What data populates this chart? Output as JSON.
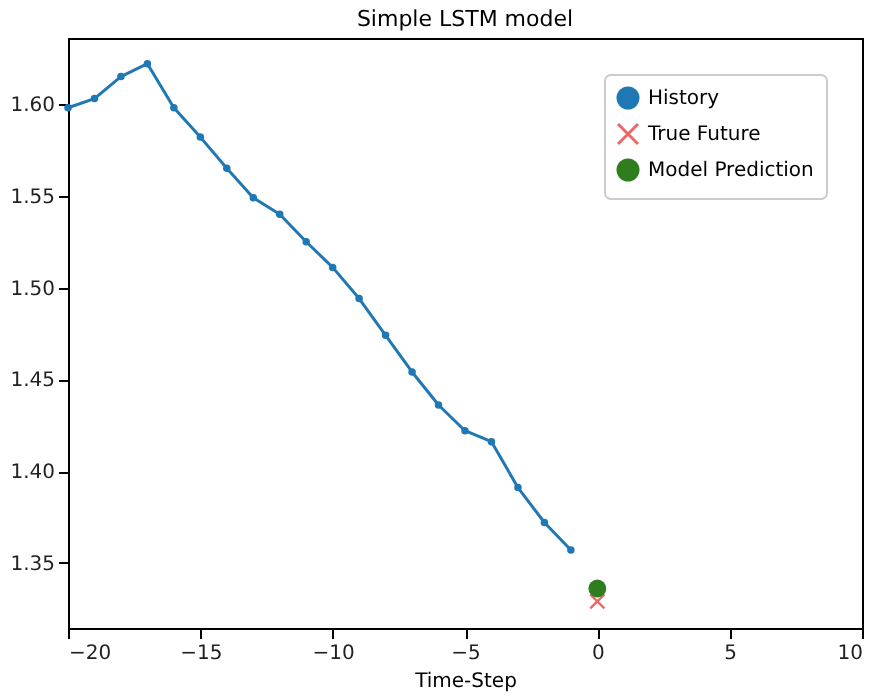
{
  "chart_data": {
    "type": "line",
    "title": "Simple LSTM model",
    "xlabel": "Time-Step",
    "xlim": [
      -20,
      10
    ],
    "xticks": [
      {
        "value": -20,
        "label": "−20"
      },
      {
        "value": -15,
        "label": "−15"
      },
      {
        "value": -10,
        "label": "−10"
      },
      {
        "value": -5,
        "label": "−5"
      },
      0,
      5,
      10
    ],
    "ylim": [
      1.3145,
      1.636
    ],
    "yticks": [
      1.35,
      {
        "value": 1.4,
        "label": "1.40"
      },
      1.45,
      {
        "value": 1.5,
        "label": "1.50"
      },
      1.55,
      {
        "value": 1.6,
        "label": "1.60"
      }
    ],
    "grid": false,
    "legend": "top right",
    "series": [
      {
        "name": "History",
        "marker": "circle",
        "color": "#1f77b4",
        "x": [
          -20,
          -19,
          -18,
          -17,
          -16,
          -15,
          -14,
          -13,
          -12,
          -11,
          -10,
          -9,
          -8,
          -7,
          -6,
          -5,
          -4,
          -3,
          -2,
          -1
        ],
        "values": [
          1.598,
          1.603,
          1.615,
          1.622,
          1.598,
          1.582,
          1.565,
          1.549,
          1.54,
          1.525,
          1.511,
          1.494,
          1.474,
          1.454,
          1.436,
          1.422,
          1.416,
          1.391,
          1.372,
          1.357
        ]
      },
      {
        "name": "True Future",
        "type": "scatter",
        "marker": "cross",
        "color": "#ee6666",
        "x": [
          0
        ],
        "values": [
          1.329
        ]
      },
      {
        "name": "Model Prediction",
        "type": "scatter",
        "marker": "circle",
        "color": "#2e7d1e",
        "x": [
          0
        ],
        "values": [
          1.336
        ]
      }
    ]
  }
}
